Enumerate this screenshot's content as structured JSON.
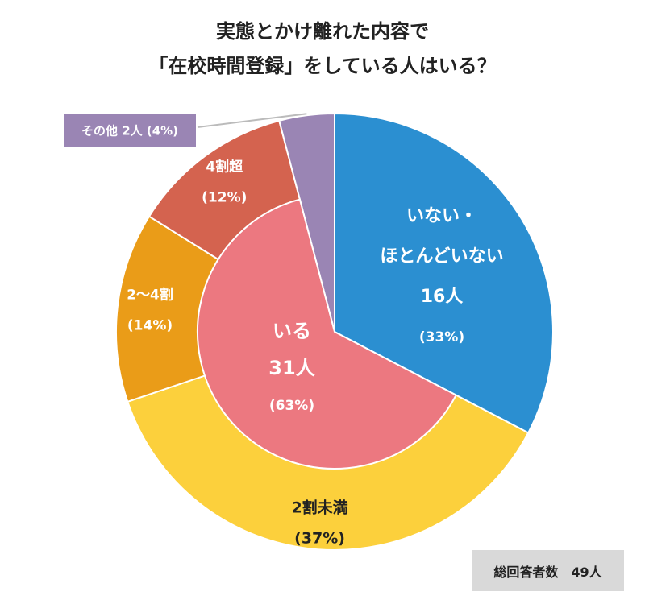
{
  "chart_data": {
    "type": "pie",
    "title_line1": "実態とかけ離れた内容で",
    "title_line2": "「在校時間登録」をしている人はいる？",
    "inner": [
      {
        "lines": [
          "いない・",
          "ほとんどいない",
          "16人"
        ],
        "pct": "(33%)",
        "value": 16,
        "color": "#2b8fd1"
      },
      {
        "lines": [
          "いる",
          "31人"
        ],
        "pct": "(63%)",
        "value": 31,
        "color": "#ec7880"
      },
      {
        "lines": [],
        "pct": "",
        "value": 2,
        "color": "#9a85b4"
      }
    ],
    "outer": [
      {
        "name": "2割未満",
        "pct": "(37%)",
        "value": 37,
        "color": "#fcd03c",
        "text_color": "#222222"
      },
      {
        "name": "2〜4割",
        "pct": "(14%)",
        "value": 14,
        "color": "#ea9c18",
        "text_color": "#ffffff"
      },
      {
        "name": "4割超",
        "pct": "(12%)",
        "value": 12,
        "color": "#d4634f",
        "text_color": "#ffffff"
      }
    ],
    "other_label": "その他  2人 (4%)",
    "other_color": "#9a85b4"
  },
  "total_label": "総回答者数　49人"
}
